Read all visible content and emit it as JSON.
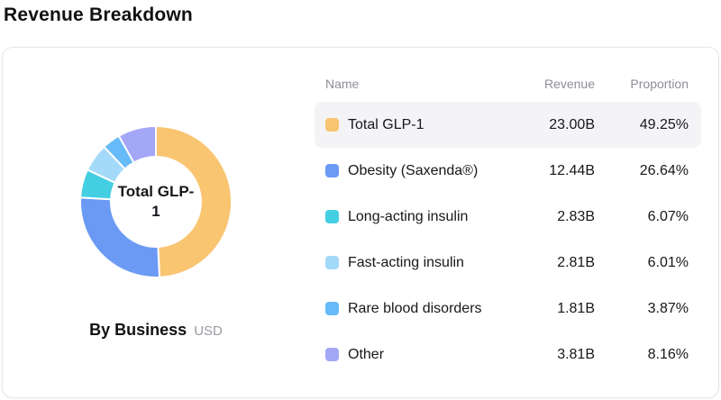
{
  "page": {
    "title": "Revenue Breakdown"
  },
  "card": {
    "center_label": "Total GLP-1",
    "center_label_lines": [
      "Total GLP-",
      "1"
    ],
    "caption": {
      "label": "By Business",
      "unit": "USD"
    }
  },
  "table": {
    "headers": {
      "name": "Name",
      "revenue": "Revenue",
      "proportion": "Proportion"
    },
    "rows": [
      {
        "name": "Total GLP-1",
        "revenue": "23.00B",
        "proportion": "49.25%",
        "color": "#F9C571",
        "highlighted": true
      },
      {
        "name": "Obesity (Saxenda®)",
        "revenue": "12.44B",
        "proportion": "26.64%",
        "color": "#6B9AF5",
        "highlighted": false
      },
      {
        "name": "Long-acting insulin",
        "revenue": "2.83B",
        "proportion": "6.07%",
        "color": "#44CEE2",
        "highlighted": false
      },
      {
        "name": "Fast-acting insulin",
        "revenue": "2.81B",
        "proportion": "6.01%",
        "color": "#A4DAF9",
        "highlighted": false
      },
      {
        "name": "Rare blood disorders",
        "revenue": "1.81B",
        "proportion": "3.87%",
        "color": "#66BAF8",
        "highlighted": false
      },
      {
        "name": "Other",
        "revenue": "3.81B",
        "proportion": "8.16%",
        "color": "#A4A7F7",
        "highlighted": false
      }
    ]
  },
  "chart_data": {
    "type": "pie",
    "subtype": "donut",
    "title": "Revenue Breakdown",
    "caption": "By Business",
    "unit": "USD",
    "center_label": "Total GLP-1",
    "categories": [
      "Total GLP-1",
      "Obesity (Saxenda®)",
      "Long-acting insulin",
      "Fast-acting insulin",
      "Rare blood disorders",
      "Other"
    ],
    "series": [
      {
        "name": "Revenue (USD, billions)",
        "values": [
          23.0,
          12.44,
          2.83,
          2.81,
          1.81,
          3.81
        ]
      }
    ],
    "proportions_pct": [
      49.25,
      26.64,
      6.07,
      6.01,
      3.87,
      8.16
    ],
    "colors": [
      "#F9C571",
      "#6B9AF5",
      "#44CEE2",
      "#A4DAF9",
      "#66BAF8",
      "#A4A7F7"
    ],
    "start_angle_deg_from_top": 0,
    "direction": "clockwise",
    "legend_position": "table-right",
    "highlighted_segment": "Total GLP-1"
  }
}
